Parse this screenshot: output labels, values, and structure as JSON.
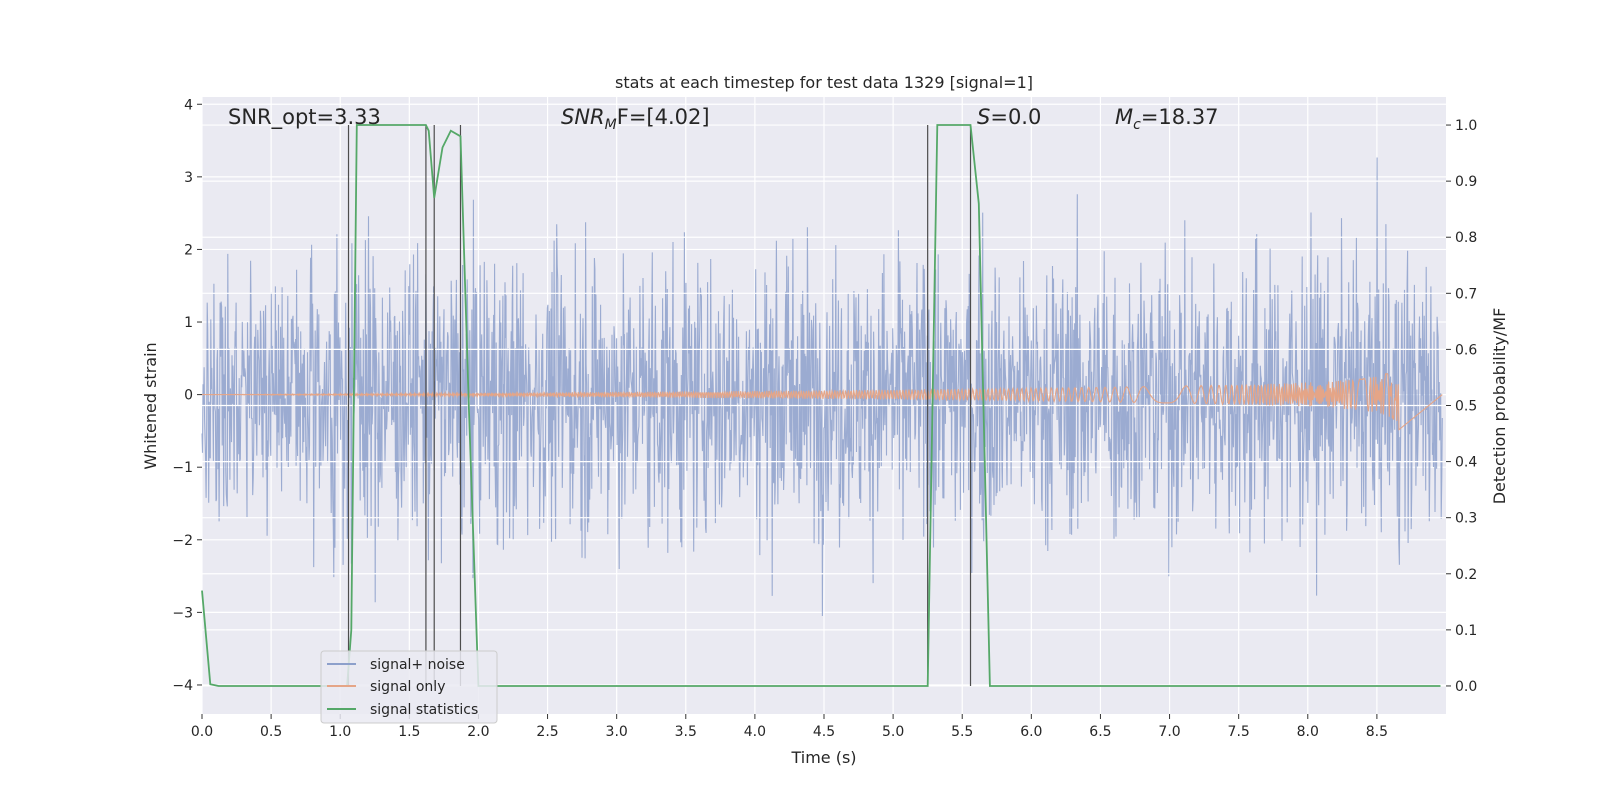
{
  "chart_data": {
    "type": "line",
    "title": "stats at each timestep for test data 1329 [signal=1]",
    "xlabel": "Time (s)",
    "ylabel_left": "Whitened strain",
    "ylabel_right": "Detection probability/MF",
    "xlim": [
      0.0,
      9.0
    ],
    "ylim_left": [
      -4.4,
      4.1
    ],
    "ylim_right": [
      -0.05,
      1.05
    ],
    "xticks": [
      "0.0",
      "0.5",
      "1.0",
      "1.5",
      "2.0",
      "2.5",
      "3.0",
      "3.5",
      "4.0",
      "4.5",
      "5.0",
      "5.5",
      "6.0",
      "6.5",
      "7.0",
      "7.5",
      "8.0",
      "8.5"
    ],
    "yticks_left": [
      "4",
      "3",
      "2",
      "1",
      "0",
      "−1",
      "−2",
      "−3",
      "−4"
    ],
    "yticks_right": [
      "1.0",
      "0.9",
      "0.8",
      "0.7",
      "0.6",
      "0.5",
      "0.4",
      "0.3",
      "0.2",
      "0.1",
      "0.0"
    ],
    "grid": true,
    "legend_position": "bottom-left",
    "annotations": {
      "snr_opt": "SNR_opt=3.33",
      "snr_mf_main": "SNR",
      "snr_mf_sub": "M",
      "snr_mf_rest": "F=[4.02]",
      "s_main": "S",
      "s_rest": "=0.0",
      "mc_main": "M",
      "mc_sub": "c",
      "mc_rest": "=18.37"
    },
    "series": [
      {
        "name": "signal+ noise",
        "color": "#8da0cb",
        "axis": "left",
        "description_range": [
          -3.9,
          3.7
        ]
      },
      {
        "name": "signal only",
        "color": "#e5a587",
        "axis": "left",
        "chirp_end_time": 8.66,
        "chirp_peak_amplitude": 0.65
      },
      {
        "name": "signal statistics",
        "color": "#55a868",
        "axis": "right",
        "x": [
          0.0,
          0.06,
          0.12,
          1.05,
          1.08,
          1.12,
          1.5,
          1.62,
          1.64,
          1.68,
          1.74,
          1.8,
          1.87,
          1.93,
          2.0,
          5.25,
          5.32,
          5.56,
          5.62,
          5.7,
          5.76,
          8.96
        ],
        "y": [
          0.17,
          0.003,
          0.0,
          0.0,
          0.1,
          1.0,
          1.0,
          1.0,
          0.99,
          0.87,
          0.96,
          0.99,
          0.98,
          0.5,
          0.0,
          0.0,
          1.0,
          1.0,
          0.86,
          0.0,
          0.0,
          0.0
        ]
      }
    ],
    "vertical_markers_x": [
      1.06,
      1.62,
      1.68,
      1.87,
      5.25,
      5.56
    ]
  },
  "legend": {
    "items": [
      {
        "label": "signal+ noise",
        "color": "#8da0cb"
      },
      {
        "label": "signal only",
        "color": "#e5a587"
      },
      {
        "label": "signal statistics",
        "color": "#55a868"
      }
    ]
  },
  "colors": {
    "plot_background": "#eaeaf2",
    "grid": "#ffffff",
    "marker_line": "#4d4d4d"
  }
}
